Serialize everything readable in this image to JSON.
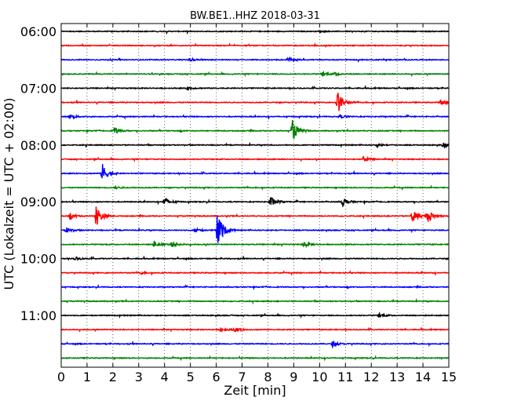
{
  "chart_data": {
    "type": "line",
    "title": "BW.BE1..HHZ 2018-03-31",
    "xlabel": "Zeit  [min]",
    "ylabel": "UTC (Lokalzeit = UTC + 02:00)",
    "xlim": [
      0,
      15
    ],
    "x_ticks": [
      "0",
      "1",
      "2",
      "3",
      "4",
      "5",
      "6",
      "7",
      "8",
      "9",
      "10",
      "11",
      "12",
      "13",
      "14",
      "15"
    ],
    "y_ticks": [
      "06:00",
      "07:00",
      "08:00",
      "09:00",
      "10:00",
      "11:00"
    ],
    "grid": true,
    "trace_colors": [
      "#000000",
      "#ff0000",
      "#0000ff",
      "#008000"
    ],
    "traces": [
      {
        "time": "06:00",
        "color": "#000000",
        "events": [
          {
            "t": 10.0,
            "amp": 0.12
          }
        ]
      },
      {
        "time": "06:15",
        "color": "#ff0000",
        "events": []
      },
      {
        "time": "06:30",
        "color": "#0000ff",
        "events": [
          {
            "t": 5.0,
            "amp": 0.15
          },
          {
            "t": 8.8,
            "amp": 0.3
          }
        ]
      },
      {
        "time": "06:45",
        "color": "#008000",
        "events": [
          {
            "t": 10.1,
            "amp": 0.35
          },
          {
            "t": 10.6,
            "amp": 0.2
          }
        ]
      },
      {
        "time": "07:00",
        "color": "#000000",
        "events": [
          {
            "t": 4.9,
            "amp": 0.2
          }
        ]
      },
      {
        "time": "07:15",
        "color": "#ff0000",
        "events": [
          {
            "t": 10.7,
            "amp": 1.6
          },
          {
            "t": 14.7,
            "amp": 0.4
          }
        ]
      },
      {
        "time": "07:30",
        "color": "#0000ff",
        "events": [
          {
            "t": 0.35,
            "amp": 0.35
          },
          {
            "t": 10.8,
            "amp": 0.2
          }
        ]
      },
      {
        "time": "07:45",
        "color": "#008000",
        "events": [
          {
            "t": 2.05,
            "amp": 0.45
          },
          {
            "t": 8.95,
            "amp": 1.5
          }
        ]
      },
      {
        "time": "08:00",
        "color": "#000000",
        "events": [
          {
            "t": 14.8,
            "amp": 0.4
          },
          {
            "t": 12.2,
            "amp": 0.2
          }
        ]
      },
      {
        "time": "08:15",
        "color": "#ff0000",
        "events": [
          {
            "t": 11.7,
            "amp": 0.35
          }
        ]
      },
      {
        "time": "08:30",
        "color": "#0000ff",
        "events": [
          {
            "t": 1.6,
            "amp": 1.3
          }
        ]
      },
      {
        "time": "08:45",
        "color": "#008000",
        "events": [
          {
            "t": 2.1,
            "amp": 0.15
          }
        ]
      },
      {
        "time": "09:00",
        "color": "#000000",
        "events": [
          {
            "t": 4.0,
            "amp": 0.7
          },
          {
            "t": 8.1,
            "amp": 0.7
          },
          {
            "t": 10.9,
            "amp": 0.6
          }
        ]
      },
      {
        "time": "09:15",
        "color": "#ff0000",
        "events": [
          {
            "t": 0.35,
            "amp": 0.4
          },
          {
            "t": 1.35,
            "amp": 1.6
          },
          {
            "t": 13.6,
            "amp": 1.0
          },
          {
            "t": 14.2,
            "amp": 0.8
          }
        ]
      },
      {
        "time": "09:30",
        "color": "#0000ff",
        "events": [
          {
            "t": 0.2,
            "amp": 0.4
          },
          {
            "t": 6.05,
            "amp": 2.6
          },
          {
            "t": 5.2,
            "amp": 0.3
          }
        ]
      },
      {
        "time": "09:45",
        "color": "#008000",
        "events": [
          {
            "t": 3.6,
            "amp": 0.5
          },
          {
            "t": 4.3,
            "amp": 0.4
          },
          {
            "t": 9.4,
            "amp": 0.4
          }
        ]
      },
      {
        "time": "10:00",
        "color": "#000000",
        "events": [
          {
            "t": 0.55,
            "amp": 0.25
          }
        ]
      },
      {
        "time": "10:15",
        "color": "#ff0000",
        "events": [
          {
            "t": 3.1,
            "amp": 0.15
          }
        ]
      },
      {
        "time": "10:30",
        "color": "#0000ff",
        "events": []
      },
      {
        "time": "10:45",
        "color": "#008000",
        "events": []
      },
      {
        "time": "11:00",
        "color": "#000000",
        "events": [
          {
            "t": 12.3,
            "amp": 0.3
          }
        ]
      },
      {
        "time": "11:15",
        "color": "#ff0000",
        "events": [
          {
            "t": 6.2,
            "amp": 0.35
          },
          {
            "t": 6.7,
            "amp": 0.3
          }
        ]
      },
      {
        "time": "11:30",
        "color": "#0000ff",
        "events": [
          {
            "t": 10.5,
            "amp": 0.4
          }
        ]
      },
      {
        "time": "11:45",
        "color": "#008000",
        "events": []
      }
    ]
  }
}
